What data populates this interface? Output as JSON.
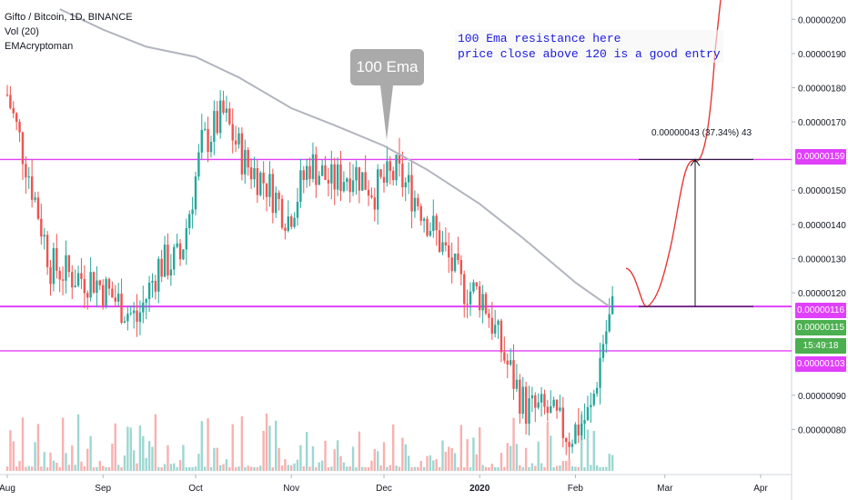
{
  "header": {
    "title": "Gifto / Bitcoin, 1D, BINANCE",
    "indicator_volume": "Vol (20)",
    "author": "EMAcryptoman"
  },
  "annotation": {
    "line1": "100 Ema resistance here",
    "line2": "price close above 120 is a good entry"
  },
  "callout_label": "100 Ema",
  "measure_label": "0.00000043 (37.34%) 43",
  "badges": {
    "upper_level": "0.00000159",
    "mid_level": "0.00000116",
    "last_price": "0.00000115",
    "countdown": "15:49:18",
    "lower_level": "0.00000103"
  },
  "colors": {
    "up": "#26a69a",
    "down": "#ef5350",
    "level_line": "#e040fb",
    "ema": "#b2b5be",
    "projection": "#e53935",
    "annotation_text": "#1a1adb",
    "last_price_badge": "#4caf50"
  },
  "chart_data": {
    "type": "candlestick",
    "title": "Gifto / Bitcoin, 1D, BINANCE",
    "y_axis": {
      "range": [
        7e-07,
        2.03e-06
      ],
      "ticks": [
        "0.00000200",
        "0.00000190",
        "0.00000180",
        "0.00000170",
        "0.00000150",
        "0.00000140",
        "0.00000130",
        "0.00000120",
        "0.00000090",
        "0.00000080"
      ]
    },
    "x_axis": {
      "ticks": [
        "Aug",
        "Sep",
        "Oct",
        "Nov",
        "Dec",
        "2020",
        "Feb",
        "Mar",
        "Apr"
      ]
    },
    "horizontal_levels": [
      1.59e-06,
      1.16e-06,
      1.03e-06
    ],
    "close_series": {
      "dates": [
        "2019-08-01",
        "2019-08-08",
        "2019-08-15",
        "2019-08-22",
        "2019-08-29",
        "2019-09-05",
        "2019-09-12",
        "2019-09-19",
        "2019-09-26",
        "2019-10-03",
        "2019-10-10",
        "2019-10-17",
        "2019-10-24",
        "2019-10-31",
        "2019-11-07",
        "2019-11-14",
        "2019-11-21",
        "2019-11-28",
        "2019-12-05",
        "2019-12-12",
        "2019-12-19",
        "2019-12-26",
        "2020-01-02",
        "2020-01-09",
        "2020-01-16",
        "2020-01-23",
        "2020-01-30",
        "2020-02-06",
        "2020-02-10",
        "2020-02-13"
      ],
      "close": [
        1.78e-06,
        1.55e-06,
        1.28e-06,
        1.25e-06,
        1.24e-06,
        1.18e-06,
        1.12e-06,
        1.28e-06,
        1.3e-06,
        1.63e-06,
        1.72e-06,
        1.58e-06,
        1.52e-06,
        1.42e-06,
        1.58e-06,
        1.52e-06,
        1.56e-06,
        1.5e-06,
        1.55e-06,
        1.47e-06,
        1.35e-06,
        1.22e-06,
        1.19e-06,
        1.01e-06,
        8.6e-07,
        8.5e-07,
        7.8e-07,
        8.5e-07,
        1.06e-06,
        1.15e-06
      ]
    },
    "ema_100": {
      "dates": [
        "2019-08-18",
        "2019-09-01",
        "2019-09-15",
        "2019-10-01",
        "2019-10-15",
        "2019-11-01",
        "2019-11-15",
        "2019-12-01",
        "2019-12-15",
        "2020-01-01",
        "2020-01-15",
        "2020-02-01",
        "2020-02-12"
      ],
      "value": [
        2.03e-06,
        1.97e-06,
        1.92e-06,
        1.89e-06,
        1.83e-06,
        1.74e-06,
        1.69e-06,
        1.63e-06,
        1.56e-06,
        1.46e-06,
        1.36e-06,
        1.23e-06,
        1.16e-06
      ]
    },
    "measurement": {
      "from": 1.16e-06,
      "to": 1.59e-06,
      "change": 4.3e-07,
      "percent": 37.34
    }
  }
}
